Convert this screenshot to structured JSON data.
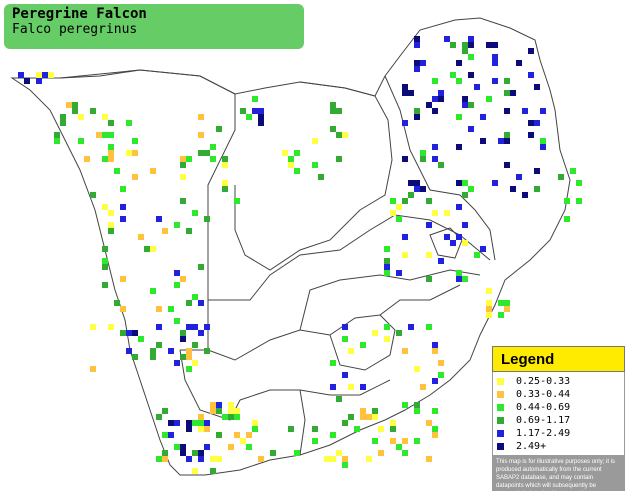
{
  "title": {
    "common_name": "Peregrine Falcon",
    "scientific_name": "Falco peregrinus"
  },
  "legend": {
    "heading": "Legend",
    "items": [
      {
        "label": "0.25-0.33",
        "color": "#ffff44"
      },
      {
        "label": "0.33-0.44",
        "color": "#ffc23e"
      },
      {
        "label": "0.44-0.69",
        "color": "#2de82d"
      },
      {
        "label": "0.69-1.17",
        "color": "#33aa33"
      },
      {
        "label": "1.17-2.49",
        "color": "#2222dd"
      },
      {
        "label": "2.49+",
        "color": "#0b0b7a"
      }
    ],
    "disclaimer": "This map is for illustrative purposes only; it is produced automatically from the current SABAP2 database, and may contain datapoints which will subsequently be removed during checking operations."
  },
  "colors": {
    "title_box": "#66cc66",
    "legend_heading": "#ffeb00",
    "border_lines": "#444444"
  }
}
